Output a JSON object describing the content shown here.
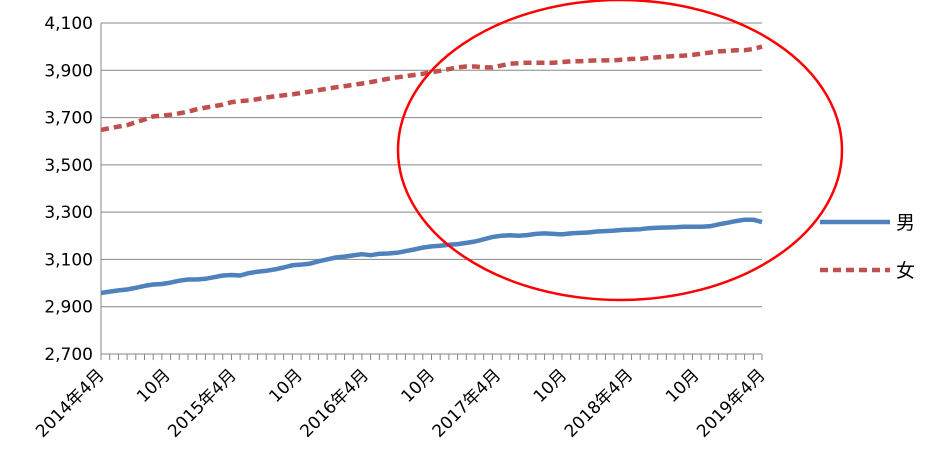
{
  "chart_data": {
    "type": "line",
    "title": "",
    "xlabel": "",
    "ylabel": "",
    "ylim": [
      2700,
      4100
    ],
    "yticks": [
      "2,700",
      "2,900",
      "3,100",
      "3,300",
      "3,500",
      "3,700",
      "3,900",
      "4,100"
    ],
    "grid": "horizontal",
    "legend_position": "right",
    "x_tick_labels": [
      "2014年4月",
      "10月",
      "2015年4月",
      "10月",
      "2016年4月",
      "10月",
      "2017年4月",
      "10月",
      "2018年4月",
      "10月",
      "2019年4月"
    ],
    "annotation": "red ellipse highlighting 2016年10月 to 2019年4月",
    "series": [
      {
        "name": "男",
        "color": "#4f81bd",
        "style": "solid",
        "values": [
          2958,
          2964,
          2969,
          2973,
          2980,
          2988,
          2994,
          2996,
          3002,
          3010,
          3015,
          3015,
          3018,
          3025,
          3032,
          3034,
          3032,
          3042,
          3048,
          3052,
          3058,
          3066,
          3075,
          3078,
          3082,
          3092,
          3100,
          3108,
          3112,
          3117,
          3122,
          3118,
          3124,
          3125,
          3128,
          3135,
          3142,
          3150,
          3155,
          3158,
          3162,
          3165,
          3170,
          3176,
          3185,
          3195,
          3200,
          3202,
          3200,
          3203,
          3208,
          3210,
          3208,
          3206,
          3210,
          3212,
          3214,
          3218,
          3220,
          3222,
          3225,
          3226,
          3228,
          3232,
          3234,
          3235,
          3236,
          3238,
          3238,
          3238,
          3240,
          3248,
          3255,
          3262,
          3268,
          3268,
          3258
        ]
      },
      {
        "name": "女",
        "color": "#c0504d",
        "style": "dashed",
        "values": [
          3648,
          3655,
          3662,
          3668,
          3680,
          3692,
          3705,
          3708,
          3712,
          3718,
          3725,
          3735,
          3742,
          3748,
          3755,
          3765,
          3770,
          3772,
          3778,
          3785,
          3790,
          3794,
          3798,
          3804,
          3810,
          3816,
          3822,
          3828,
          3833,
          3838,
          3844,
          3850,
          3857,
          3864,
          3870,
          3875,
          3880,
          3885,
          3892,
          3898,
          3905,
          3912,
          3916,
          3916,
          3912,
          3912,
          3920,
          3928,
          3930,
          3932,
          3932,
          3932,
          3932,
          3935,
          3938,
          3938,
          3940,
          3942,
          3942,
          3942,
          3945,
          3948,
          3948,
          3952,
          3955,
          3958,
          3960,
          3962,
          3965,
          3970,
          3975,
          3980,
          3982,
          3985,
          3985,
          3990,
          4000
        ]
      }
    ]
  }
}
